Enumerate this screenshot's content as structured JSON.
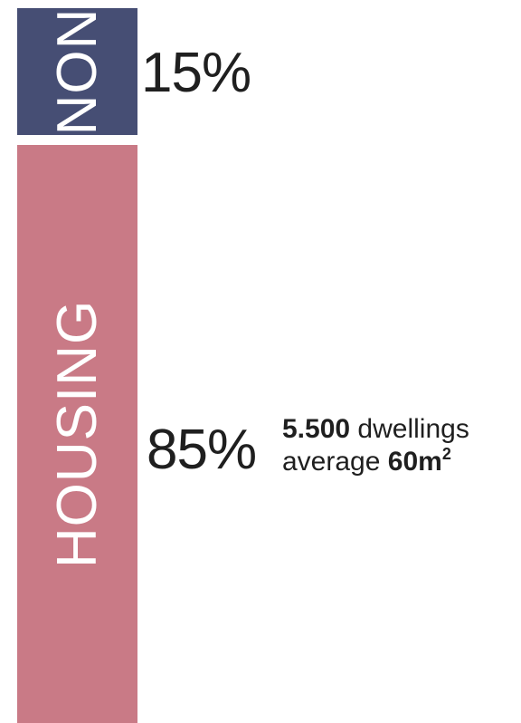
{
  "chart_data": {
    "type": "bar",
    "stacked": true,
    "orientation": "vertical",
    "categories": [
      "NON",
      "HOUSING"
    ],
    "values": [
      15,
      85
    ],
    "value_labels": [
      "15%",
      "85%"
    ],
    "colors": [
      "#464e74",
      "#c97a86"
    ],
    "title": "",
    "xlabel": "",
    "ylabel": "",
    "annotation": {
      "count": "5.500",
      "count_text": "dwellings",
      "average_text": "average",
      "area_value": "60m",
      "area_sup": "2"
    }
  }
}
